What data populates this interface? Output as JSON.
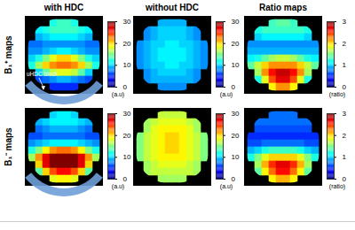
{
  "chart_data": {
    "type": "heatmap_grid",
    "columns": [
      "with HDC",
      "without HDC",
      "Ratio maps"
    ],
    "rows": [
      "B₁⁺ maps",
      "B₁⁻ maps"
    ],
    "annotation": "uHDC block",
    "colorbars": [
      {
        "range": [
          0,
          30
        ],
        "ticks": [
          0,
          10,
          20,
          30
        ],
        "label": "(a.u)"
      },
      {
        "range": [
          0,
          3
        ],
        "ticks": [
          0,
          1,
          2,
          3
        ],
        "label": "(ratio)"
      }
    ],
    "maps": [
      {
        "row": 0,
        "column": 0,
        "colorbar": 0,
        "cells": [
          [
            null,
            null,
            null,
            12,
            13,
            13,
            12,
            null,
            null,
            null
          ],
          [
            null,
            11,
            12,
            13,
            13,
            13,
            13,
            12,
            11,
            null
          ],
          [
            null,
            9,
            10,
            11,
            11,
            11,
            11,
            10,
            9,
            null
          ],
          [
            7,
            7,
            8,
            8,
            8,
            8,
            8,
            8,
            7,
            7
          ],
          [
            8,
            8,
            9,
            10,
            11,
            11,
            10,
            9,
            8,
            8
          ],
          [
            10,
            12,
            15,
            18,
            20,
            20,
            18,
            15,
            12,
            10
          ],
          [
            12,
            16,
            20,
            22,
            23,
            23,
            22,
            20,
            16,
            12
          ],
          [
            null,
            10,
            14,
            17,
            18,
            18,
            17,
            14,
            10,
            null
          ],
          [
            null,
            6,
            7,
            8,
            9,
            9,
            8,
            7,
            6,
            null
          ],
          [
            null,
            null,
            null,
            5,
            5,
            5,
            5,
            null,
            null,
            null
          ]
        ]
      },
      {
        "row": 0,
        "column": 1,
        "colorbar": 0,
        "cells": [
          [
            null,
            null,
            null,
            9,
            9,
            9,
            9,
            null,
            null,
            null
          ],
          [
            null,
            8,
            9,
            10,
            10,
            10,
            10,
            9,
            8,
            null
          ],
          [
            null,
            8,
            9,
            10,
            10,
            10,
            10,
            9,
            8,
            null
          ],
          [
            8,
            9,
            10,
            10,
            11,
            11,
            10,
            10,
            9,
            8
          ],
          [
            8,
            9,
            10,
            11,
            11,
            11,
            11,
            10,
            9,
            8
          ],
          [
            8,
            9,
            10,
            11,
            11,
            11,
            11,
            10,
            9,
            8
          ],
          [
            8,
            9,
            10,
            10,
            11,
            11,
            10,
            10,
            9,
            8
          ],
          [
            null,
            8,
            9,
            10,
            10,
            10,
            10,
            9,
            8,
            null
          ],
          [
            null,
            8,
            9,
            9,
            9,
            9,
            9,
            9,
            8,
            null
          ],
          [
            null,
            null,
            null,
            8,
            8,
            8,
            8,
            null,
            null,
            null
          ]
        ]
      },
      {
        "row": 0,
        "column": 2,
        "colorbar": 1,
        "cells": [
          [
            null,
            null,
            null,
            1.3,
            1.4,
            1.4,
            1.3,
            null,
            null,
            null
          ],
          [
            null,
            1.2,
            1.3,
            1.3,
            1.3,
            1.3,
            1.3,
            1.3,
            1.2,
            null
          ],
          [
            null,
            1.0,
            1.1,
            1.1,
            1.1,
            1.1,
            1.1,
            1.1,
            1.0,
            null
          ],
          [
            0.8,
            0.8,
            0.8,
            0.8,
            0.8,
            0.8,
            0.8,
            0.8,
            0.8,
            0.8
          ],
          [
            0.9,
            0.9,
            0.9,
            0.9,
            0.9,
            0.9,
            0.9,
            0.9,
            0.9,
            0.9
          ],
          [
            1.1,
            1.2,
            1.4,
            1.6,
            1.7,
            1.7,
            1.6,
            1.4,
            1.2,
            1.1
          ],
          [
            1.4,
            1.7,
            2.0,
            2.2,
            2.2,
            2.2,
            2.2,
            2.0,
            1.7,
            1.4
          ],
          [
            null,
            1.6,
            2.2,
            2.6,
            2.8,
            2.8,
            2.6,
            2.2,
            1.6,
            null
          ],
          [
            null,
            1.2,
            1.8,
            2.4,
            2.7,
            2.7,
            2.4,
            1.8,
            1.2,
            null
          ],
          [
            null,
            null,
            null,
            1.9,
            2.2,
            2.2,
            1.9,
            null,
            null,
            null
          ]
        ]
      },
      {
        "row": 1,
        "column": 0,
        "colorbar": 0,
        "cells": [
          [
            null,
            null,
            null,
            10,
            11,
            11,
            10,
            null,
            null,
            null
          ],
          [
            null,
            9,
            10,
            11,
            11,
            11,
            11,
            10,
            9,
            null
          ],
          [
            null,
            7,
            8,
            9,
            9,
            9,
            9,
            8,
            7,
            null
          ],
          [
            6,
            6,
            7,
            7,
            7,
            7,
            7,
            7,
            6,
            6
          ],
          [
            8,
            9,
            10,
            11,
            11,
            11,
            11,
            10,
            9,
            8
          ],
          [
            12,
            15,
            19,
            22,
            23,
            23,
            22,
            19,
            15,
            12
          ],
          [
            16,
            22,
            27,
            30,
            30,
            30,
            30,
            27,
            22,
            16
          ],
          [
            null,
            20,
            27,
            30,
            30,
            30,
            30,
            27,
            20,
            null
          ],
          [
            null,
            14,
            20,
            24,
            26,
            26,
            24,
            20,
            14,
            null
          ],
          [
            null,
            null,
            null,
            18,
            19,
            19,
            18,
            null,
            null,
            null
          ]
        ]
      },
      {
        "row": 1,
        "column": 1,
        "colorbar": 0,
        "cells": [
          [
            null,
            null,
            null,
            17,
            17,
            17,
            17,
            null,
            null,
            null
          ],
          [
            null,
            16,
            17,
            18,
            18,
            18,
            18,
            17,
            16,
            null
          ],
          [
            null,
            16,
            18,
            19,
            19,
            19,
            19,
            18,
            16,
            null
          ],
          [
            15,
            17,
            18,
            19,
            20,
            20,
            19,
            18,
            17,
            15
          ],
          [
            15,
            17,
            18,
            19,
            20,
            20,
            19,
            18,
            17,
            15
          ],
          [
            15,
            17,
            18,
            19,
            20,
            20,
            19,
            18,
            17,
            15
          ],
          [
            15,
            17,
            18,
            19,
            19,
            19,
            19,
            18,
            17,
            15
          ],
          [
            null,
            16,
            17,
            18,
            18,
            18,
            18,
            17,
            16,
            null
          ],
          [
            null,
            16,
            17,
            17,
            17,
            17,
            17,
            17,
            16,
            null
          ],
          [
            null,
            null,
            null,
            16,
            16,
            16,
            16,
            null,
            null,
            null
          ]
        ]
      },
      {
        "row": 1,
        "column": 2,
        "colorbar": 1,
        "cells": [
          [
            null,
            null,
            null,
            0.7,
            0.7,
            0.7,
            0.7,
            null,
            null,
            null
          ],
          [
            null,
            0.7,
            0.7,
            0.7,
            0.7,
            0.7,
            0.7,
            0.7,
            0.7,
            null
          ],
          [
            null,
            0.6,
            0.6,
            0.6,
            0.6,
            0.6,
            0.6,
            0.6,
            0.6,
            null
          ],
          [
            0.5,
            0.5,
            0.5,
            0.5,
            0.5,
            0.5,
            0.5,
            0.5,
            0.5,
            0.5
          ],
          [
            0.6,
            0.6,
            0.7,
            0.7,
            0.7,
            0.7,
            0.7,
            0.7,
            0.6,
            0.6
          ],
          [
            0.9,
            1.0,
            1.2,
            1.3,
            1.3,
            1.3,
            1.3,
            1.2,
            1.0,
            0.9
          ],
          [
            1.2,
            1.5,
            1.8,
            2.0,
            2.0,
            2.0,
            2.0,
            1.8,
            1.5,
            1.2
          ],
          [
            null,
            1.6,
            2.1,
            2.5,
            2.7,
            2.7,
            2.5,
            2.1,
            1.6,
            null
          ],
          [
            null,
            1.4,
            1.9,
            2.3,
            2.6,
            2.6,
            2.3,
            1.9,
            1.4,
            null
          ],
          [
            null,
            null,
            null,
            1.9,
            2.1,
            2.1,
            1.9,
            null,
            null,
            null
          ]
        ]
      }
    ]
  }
}
